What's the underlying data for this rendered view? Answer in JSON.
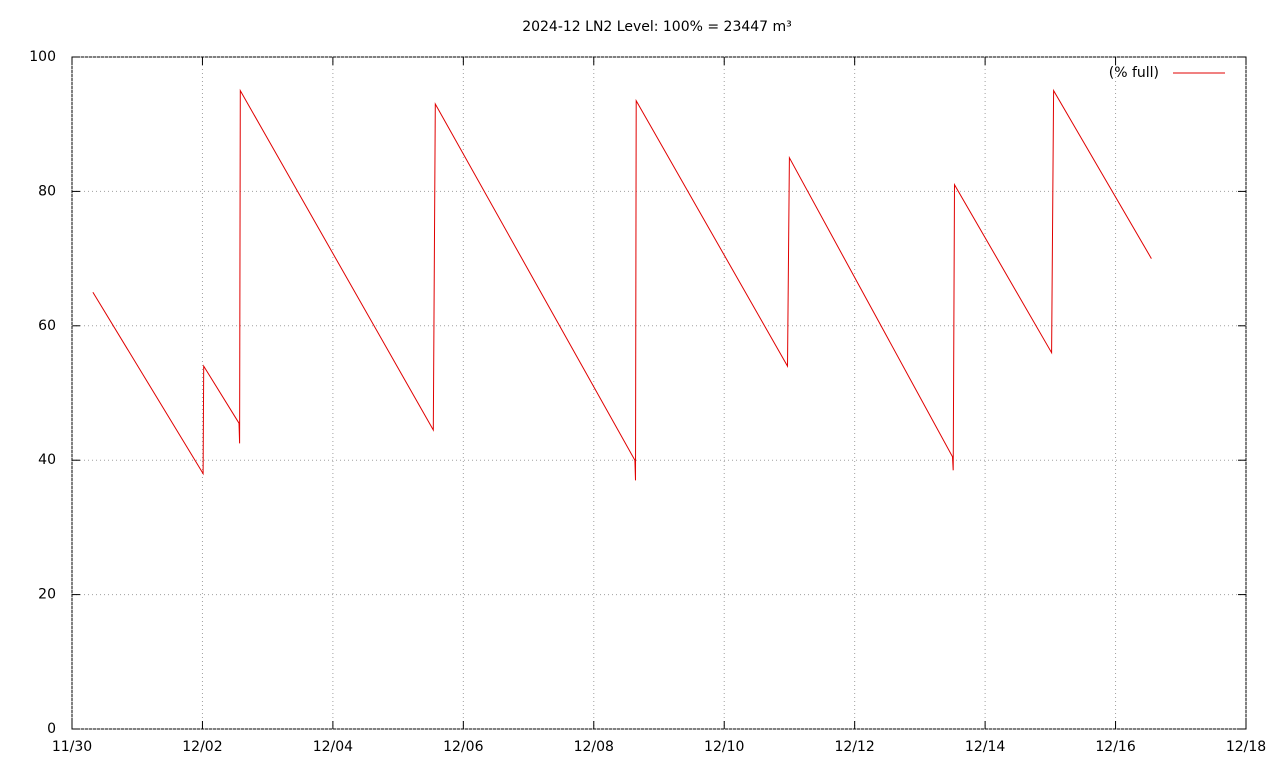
{
  "chart_data": {
    "type": "line",
    "title": "2024-12 LN2 Level: 100% = 23447 m³",
    "x": [
      0.32,
      2.01,
      2.02,
      2.56,
      2.57,
      2.58,
      5.54,
      5.57,
      8.63,
      8.64,
      8.65,
      10.97,
      11.0,
      13.5,
      13.51,
      13.53,
      15.02,
      15.05,
      16.55
    ],
    "series": [
      {
        "name": "(% full)",
        "color": "#e00000",
        "values": [
          65,
          38,
          54,
          45.5,
          42.5,
          95,
          44.5,
          93,
          40,
          37,
          93.5,
          54,
          85,
          40.5,
          38.5,
          81,
          56,
          95,
          70
        ]
      }
    ],
    "xlim": [
      0,
      18
    ],
    "xticks": [
      {
        "value": 0,
        "label": "11/30"
      },
      {
        "value": 2,
        "label": "12/02"
      },
      {
        "value": 4,
        "label": "12/04"
      },
      {
        "value": 6,
        "label": "12/06"
      },
      {
        "value": 8,
        "label": "12/08"
      },
      {
        "value": 10,
        "label": "12/10"
      },
      {
        "value": 12,
        "label": "12/12"
      },
      {
        "value": 14,
        "label": "12/14"
      },
      {
        "value": 16,
        "label": "12/16"
      },
      {
        "value": 18,
        "label": "12/18"
      }
    ],
    "ylim": [
      0,
      100
    ],
    "yticks": [
      0,
      20,
      40,
      60,
      80,
      100
    ],
    "grid": true,
    "legend": "top-right"
  }
}
